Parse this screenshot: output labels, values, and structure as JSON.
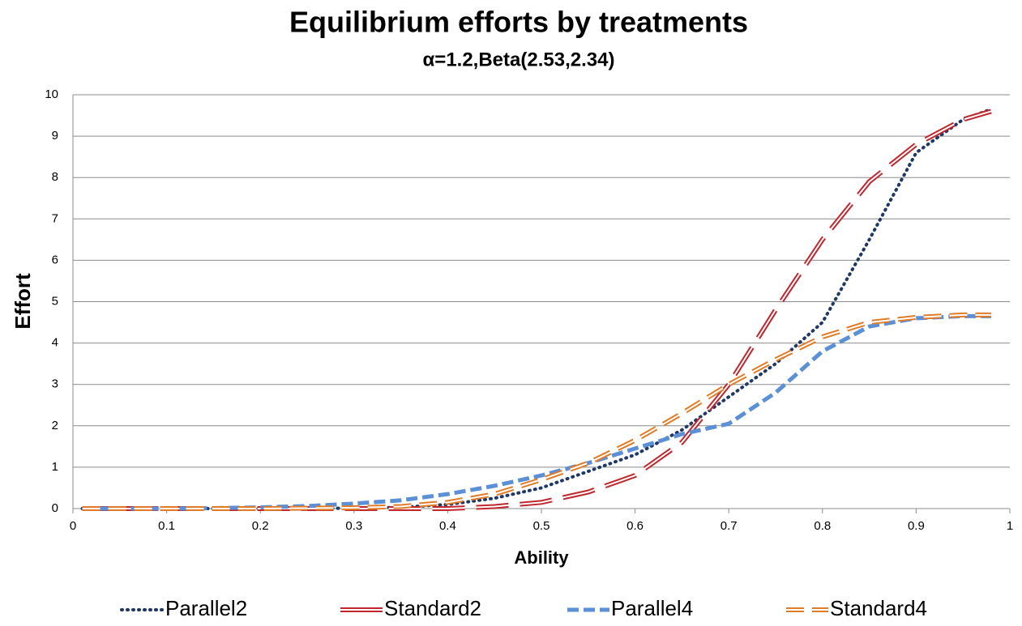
{
  "chart_data": {
    "type": "line",
    "title": "Equilibrium efforts by treatments",
    "subtitle": "α=1.2,Beta(2.53,2.34)",
    "x_label": "Ability",
    "y_label": "Effort",
    "x": [
      0.01,
      0.05,
      0.1,
      0.15,
      0.2,
      0.25,
      0.3,
      0.35,
      0.4,
      0.45,
      0.5,
      0.55,
      0.6,
      0.65,
      0.7,
      0.75,
      0.8,
      0.85,
      0.9,
      0.95,
      0.98
    ],
    "series": [
      {
        "name": "Parallel2",
        "color": "#1f3864",
        "style": "dotted",
        "values": [
          0,
          0,
          0,
          0,
          0,
          0,
          0.01,
          0.03,
          0.1,
          0.25,
          0.5,
          0.9,
          1.3,
          1.9,
          2.7,
          3.5,
          4.5,
          6.5,
          8.6,
          9.4,
          9.65
        ]
      },
      {
        "name": "Standard2",
        "color": "#c0262d",
        "style": "double",
        "values": [
          0,
          0,
          0,
          0,
          0,
          0,
          0,
          0,
          0,
          0.05,
          0.15,
          0.4,
          0.8,
          1.6,
          3.0,
          4.8,
          6.5,
          7.9,
          8.8,
          9.4,
          9.6
        ]
      },
      {
        "name": "Parallel4",
        "color": "#5b8fd6",
        "style": "dashed",
        "values": [
          0,
          0,
          0,
          0.01,
          0.03,
          0.06,
          0.12,
          0.2,
          0.35,
          0.55,
          0.8,
          1.1,
          1.45,
          1.8,
          2.05,
          2.8,
          3.8,
          4.4,
          4.6,
          4.65,
          4.65
        ]
      },
      {
        "name": "Standard4",
        "color": "#e07b28",
        "style": "double-dashed",
        "values": [
          0,
          0,
          0,
          0,
          0,
          0.01,
          0.02,
          0.05,
          0.15,
          0.35,
          0.7,
          1.1,
          1.65,
          2.3,
          3.0,
          3.6,
          4.15,
          4.5,
          4.62,
          4.68,
          4.68
        ]
      }
    ],
    "xlim": [
      0,
      1
    ],
    "xticks": [
      0,
      0.1,
      0.2,
      0.3,
      0.4,
      0.5,
      0.6,
      0.7,
      0.8,
      0.9,
      1
    ],
    "ylim": [
      0,
      10
    ],
    "yticks": [
      0,
      1,
      2,
      3,
      4,
      5,
      6,
      7,
      8,
      9,
      10
    ],
    "grid": true,
    "legend": "bottom"
  }
}
